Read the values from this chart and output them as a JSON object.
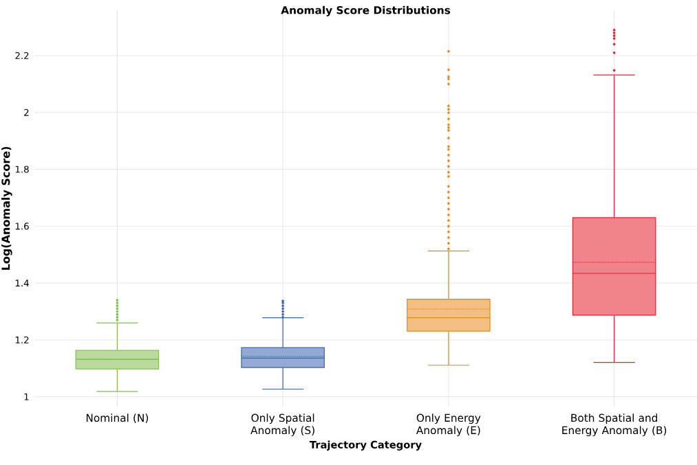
{
  "chart_data": {
    "type": "box",
    "title": "Anomaly Score Distributions",
    "xlabel": "Trajectory Category",
    "ylabel": "Log(Anomaly Score)",
    "categories": [
      "Nominal (N)",
      "Only Spatial Anomaly (S)",
      "Only Energy Anomaly (E)",
      "Both Spatial and Energy Anomaly (B)"
    ],
    "colors": [
      "#7fbf4f",
      "#3a66ae",
      "#e8891a",
      "#e5202a"
    ],
    "boxes": [
      {
        "low": 1.019,
        "q1": 1.098,
        "median": 1.131,
        "q3": 1.163,
        "high": 1.26,
        "mean": 1.134,
        "outliers": [
          1.27,
          1.28,
          1.29,
          1.3,
          1.31,
          1.32,
          1.33,
          1.34
        ]
      },
      {
        "low": 1.027,
        "q1": 1.103,
        "median": 1.136,
        "q3": 1.173,
        "high": 1.278,
        "mean": 1.142,
        "outliers": [
          1.28,
          1.29,
          1.3,
          1.31,
          1.32,
          1.33,
          1.337
        ]
      },
      {
        "low": 1.111,
        "q1": 1.231,
        "median": 1.278,
        "q3": 1.343,
        "high": 1.513,
        "mean": 1.309,
        "outliers": [
          1.52,
          1.54,
          1.56,
          1.58,
          1.6,
          1.62,
          1.64,
          1.66,
          1.68,
          1.7,
          1.72,
          1.74,
          1.775,
          1.79,
          1.81,
          1.83,
          1.85,
          1.87,
          1.88,
          1.91,
          1.937,
          1.947,
          1.957,
          1.977,
          1.999,
          2.011,
          2.023,
          2.1,
          2.118,
          2.126,
          2.15,
          2.215
        ]
      },
      {
        "low": 1.121,
        "q1": 1.287,
        "median": 1.434,
        "q3": 1.63,
        "high": 2.132,
        "mean": 1.473,
        "outliers": [
          2.148,
          2.21,
          2.24,
          2.26,
          2.27,
          2.28,
          2.29
        ]
      }
    ],
    "ylim": [
      0.965,
      2.36
    ],
    "yticks": [
      1,
      1.2,
      1.4,
      1.6,
      1.8,
      2,
      2.2
    ],
    "grid": true
  }
}
